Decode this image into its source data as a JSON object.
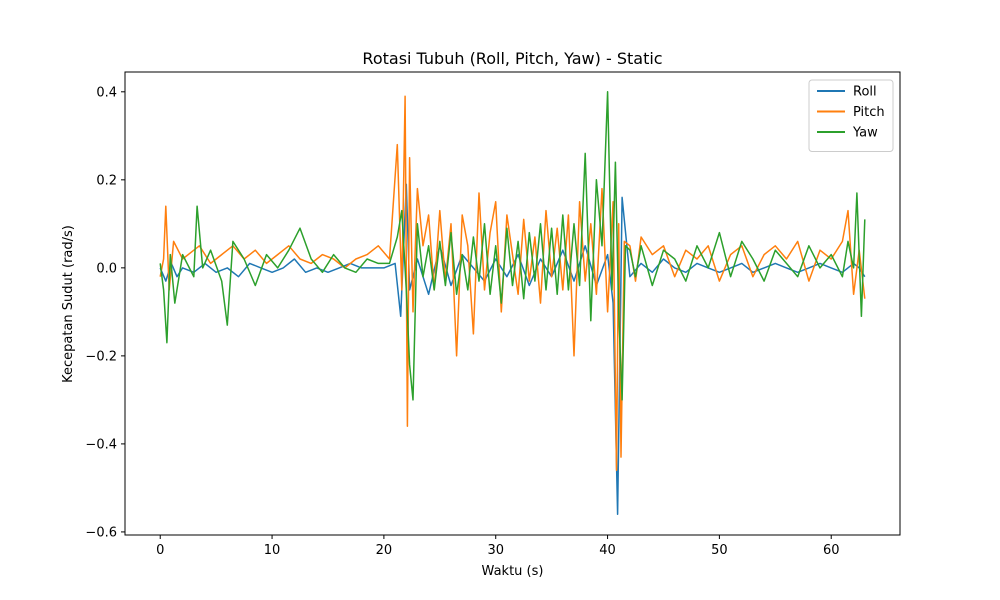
{
  "chart_data": {
    "type": "line",
    "title": "Rotasi Tubuh (Roll, Pitch, Yaw) - Static",
    "xlabel": "Waktu (s)",
    "ylabel": "Kecepatan Sudut (rad/s)",
    "xlim": [
      -3.15,
      66.15
    ],
    "ylim": [
      -0.607,
      0.445
    ],
    "xticks": [
      0,
      10,
      20,
      30,
      40,
      50,
      60
    ],
    "xtick_labels": [
      "0",
      "10",
      "20",
      "30",
      "40",
      "50",
      "60"
    ],
    "yticks": [
      -0.6,
      -0.4,
      -0.2,
      0.0,
      0.2,
      0.4
    ],
    "ytick_labels": [
      "−0.6",
      "−0.4",
      "−0.2",
      "0.0",
      "0.2",
      "0.4"
    ],
    "grid": false,
    "legend_position": "top-right",
    "series": [
      {
        "name": "Roll",
        "color": "#1f77b4",
        "x": [
          0,
          0.5,
          1.0,
          1.5,
          2.0,
          3.0,
          4.0,
          5.0,
          6.0,
          7.0,
          8.0,
          9.0,
          10.0,
          11.0,
          12.0,
          13.0,
          14.0,
          15.0,
          16.0,
          17.0,
          18.0,
          19.0,
          20.0,
          21.0,
          21.5,
          22.0,
          22.3,
          23.0,
          24.0,
          25.0,
          26.0,
          27.0,
          28.0,
          29.0,
          30.0,
          31.0,
          32.0,
          33.0,
          34.0,
          35.0,
          36.0,
          37.0,
          38.0,
          39.0,
          40.0,
          40.5,
          40.9,
          41.3,
          42.0,
          43.0,
          44.0,
          45.0,
          46.0,
          47.0,
          48.0,
          49.0,
          50.0,
          51.0,
          52.0,
          53.0,
          54.0,
          55.0,
          56.0,
          57.0,
          58.0,
          59.0,
          60.0,
          61.0,
          62.0,
          62.5,
          63.0
        ],
        "y": [
          0.0,
          -0.03,
          0.01,
          -0.02,
          0.0,
          -0.01,
          0.01,
          -0.01,
          0.0,
          -0.02,
          0.01,
          0.0,
          -0.01,
          0.0,
          0.02,
          -0.01,
          0.0,
          -0.01,
          0.0,
          0.01,
          0.0,
          0.0,
          0.0,
          0.01,
          -0.11,
          0.19,
          -0.05,
          0.02,
          -0.06,
          0.05,
          -0.04,
          0.03,
          0.0,
          -0.03,
          0.02,
          -0.02,
          0.03,
          -0.04,
          0.02,
          -0.02,
          0.04,
          -0.03,
          0.05,
          -0.04,
          0.03,
          -0.08,
          -0.56,
          0.16,
          -0.02,
          0.01,
          -0.01,
          0.02,
          0.0,
          -0.01,
          0.01,
          0.0,
          -0.01,
          0.0,
          0.01,
          -0.01,
          0.0,
          0.01,
          0.0,
          -0.01,
          0.0,
          0.01,
          0.0,
          -0.01,
          0.01,
          0.0,
          -0.02
        ]
      },
      {
        "name": "Pitch",
        "color": "#ff7f0e",
        "x": [
          0,
          0.3,
          0.5,
          0.8,
          1.2,
          2.0,
          3.0,
          3.5,
          4.5,
          5.5,
          6.5,
          7.5,
          8.5,
          9.5,
          10.5,
          11.5,
          12.5,
          13.5,
          14.5,
          15.5,
          16.5,
          17.5,
          18.5,
          19.5,
          20.5,
          21.2,
          21.6,
          21.9,
          22.1,
          22.3,
          22.6,
          23.0,
          23.5,
          24.0,
          24.5,
          25.0,
          25.5,
          26.0,
          26.5,
          27.0,
          27.5,
          28.0,
          28.5,
          29.0,
          29.5,
          30.0,
          30.5,
          31.0,
          31.5,
          32.0,
          32.5,
          33.0,
          33.5,
          34.0,
          34.5,
          35.0,
          35.5,
          36.0,
          36.5,
          37.0,
          37.5,
          38.0,
          38.5,
          39.0,
          39.5,
          40.0,
          40.5,
          40.8,
          41.0,
          41.2,
          41.5,
          42.0,
          42.5,
          43.0,
          44.0,
          45.0,
          46.0,
          47.0,
          48.0,
          49.0,
          50.0,
          51.0,
          52.0,
          53.0,
          54.0,
          55.0,
          56.0,
          57.0,
          58.0,
          59.0,
          60.0,
          61.0,
          61.5,
          62.0,
          62.5,
          63.0
        ],
        "y": [
          -0.02,
          0.02,
          0.14,
          -0.05,
          0.06,
          0.02,
          0.04,
          0.05,
          0.01,
          0.03,
          0.05,
          0.02,
          0.04,
          0.01,
          0.03,
          0.05,
          0.02,
          0.01,
          0.03,
          0.02,
          0.0,
          0.02,
          0.03,
          0.05,
          0.02,
          0.28,
          -0.05,
          0.39,
          -0.36,
          0.25,
          -0.1,
          0.18,
          0.05,
          0.12,
          -0.05,
          0.13,
          -0.03,
          0.1,
          -0.2,
          0.12,
          0.05,
          -0.15,
          0.17,
          -0.05,
          0.08,
          0.15,
          -0.1,
          0.12,
          0.03,
          -0.06,
          0.11,
          -0.03,
          0.07,
          -0.08,
          0.13,
          -0.02,
          0.09,
          -0.05,
          0.12,
          -0.2,
          0.15,
          -0.03,
          0.1,
          -0.06,
          0.18,
          -0.1,
          0.15,
          -0.46,
          0.1,
          -0.43,
          0.06,
          0.05,
          -0.03,
          0.07,
          0.03,
          0.05,
          -0.02,
          0.04,
          0.02,
          0.05,
          -0.03,
          0.03,
          0.05,
          -0.02,
          0.03,
          0.05,
          0.02,
          0.06,
          -0.03,
          0.04,
          0.02,
          0.06,
          0.13,
          -0.06,
          0.04,
          -0.07
        ]
      },
      {
        "name": "Yaw",
        "color": "#2ca02c",
        "x": [
          0,
          0.3,
          0.6,
          0.9,
          1.3,
          2.0,
          3.0,
          3.3,
          3.8,
          4.5,
          5.5,
          6.0,
          6.5,
          7.5,
          8.5,
          9.5,
          10.5,
          11.5,
          12.5,
          13.5,
          14.5,
          15.5,
          16.5,
          17.5,
          18.5,
          19.5,
          20.5,
          21.2,
          21.6,
          22.0,
          22.3,
          22.6,
          23.0,
          23.5,
          24.0,
          24.5,
          25.0,
          25.5,
          26.0,
          26.5,
          27.0,
          27.5,
          28.0,
          28.5,
          29.0,
          29.5,
          30.0,
          30.5,
          31.0,
          31.5,
          32.0,
          32.5,
          33.0,
          33.5,
          34.0,
          34.5,
          35.0,
          35.5,
          36.0,
          36.5,
          37.0,
          37.5,
          38.0,
          38.5,
          39.0,
          39.5,
          40.0,
          40.4,
          40.7,
          41.0,
          41.3,
          41.6,
          42.0,
          42.5,
          43.0,
          44.0,
          45.0,
          46.0,
          47.0,
          48.0,
          49.0,
          50.0,
          51.0,
          52.0,
          53.0,
          54.0,
          55.0,
          56.0,
          57.0,
          58.0,
          59.0,
          60.0,
          61.0,
          61.5,
          62.0,
          62.3,
          62.7,
          63.0
        ],
        "y": [
          0.01,
          -0.05,
          -0.17,
          0.03,
          -0.08,
          0.03,
          -0.02,
          0.14,
          0.0,
          0.04,
          -0.03,
          -0.13,
          0.06,
          0.02,
          -0.04,
          0.03,
          0.0,
          0.04,
          0.09,
          0.02,
          -0.01,
          0.03,
          0.0,
          -0.01,
          0.02,
          0.01,
          0.01,
          0.07,
          0.13,
          -0.05,
          -0.22,
          -0.3,
          0.1,
          -0.02,
          0.05,
          -0.05,
          0.06,
          -0.04,
          0.08,
          -0.06,
          0.03,
          -0.05,
          0.07,
          -0.03,
          0.1,
          -0.06,
          0.05,
          -0.08,
          0.09,
          -0.04,
          0.06,
          -0.07,
          0.08,
          -0.03,
          0.1,
          -0.05,
          0.09,
          -0.06,
          0.12,
          -0.05,
          0.1,
          -0.04,
          0.26,
          -0.12,
          0.2,
          0.05,
          0.4,
          -0.05,
          0.24,
          -0.1,
          -0.3,
          0.05,
          0.04,
          -0.02,
          0.05,
          -0.04,
          0.04,
          0.02,
          -0.03,
          0.05,
          0.0,
          0.08,
          -0.02,
          0.06,
          0.02,
          -0.03,
          0.04,
          0.01,
          -0.02,
          0.05,
          0.0,
          0.03,
          -0.02,
          0.06,
          0.0,
          0.17,
          -0.11,
          0.11
        ]
      }
    ]
  }
}
